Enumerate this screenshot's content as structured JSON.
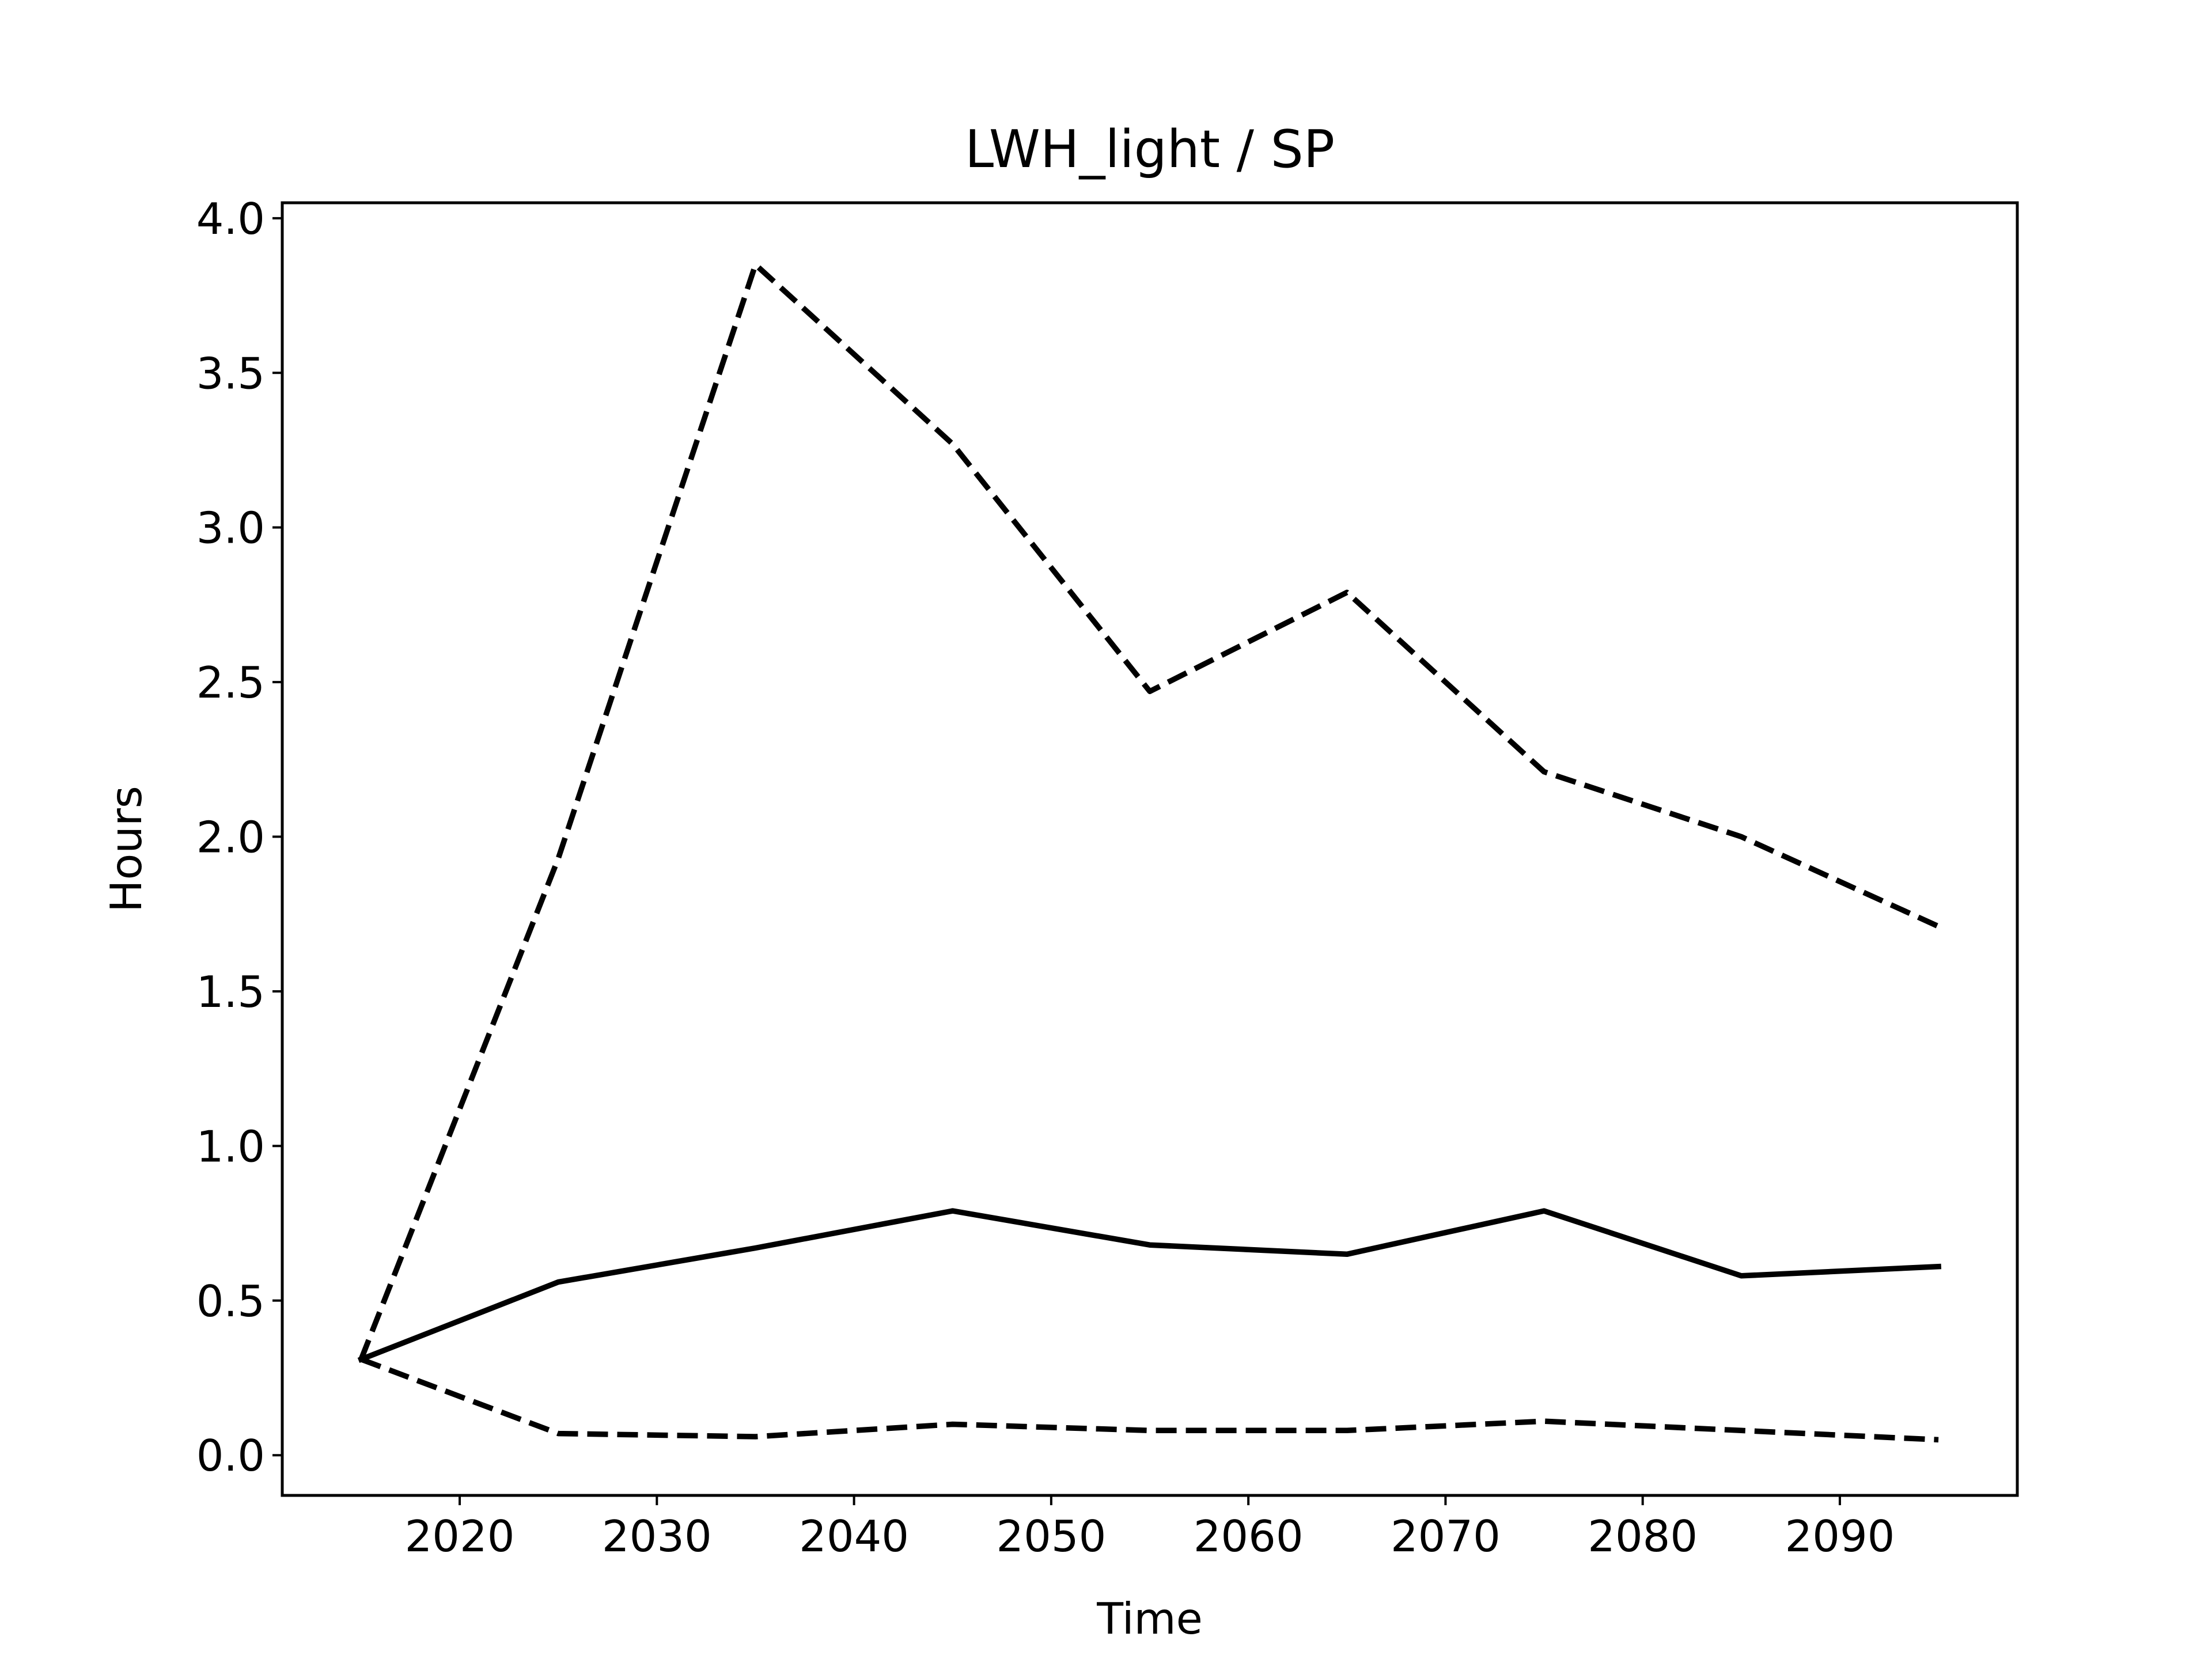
{
  "chart_data": {
    "type": "line",
    "title": "LWH_light / SP",
    "xlabel": "Time",
    "ylabel": "Hours",
    "xlim": [
      2011,
      2099
    ],
    "ylim": [
      -0.13,
      4.05
    ],
    "x_ticks": [
      2020,
      2030,
      2040,
      2050,
      2060,
      2070,
      2080,
      2090
    ],
    "y_ticks": [
      0.0,
      0.5,
      1.0,
      1.5,
      2.0,
      2.5,
      3.0,
      3.5,
      4.0
    ],
    "y_tick_labels": [
      "0.0",
      "0.5",
      "1.0",
      "1.5",
      "2.0",
      "2.5",
      "3.0",
      "3.5",
      "4.0"
    ],
    "grid": false,
    "x": [
      2015,
      2025,
      2035,
      2045,
      2055,
      2065,
      2075,
      2085,
      2095
    ],
    "series": [
      {
        "style": "dashed",
        "color": "#000000",
        "values": [
          0.31,
          1.93,
          3.85,
          3.27,
          2.47,
          2.79,
          2.21,
          2.0,
          1.71
        ]
      },
      {
        "style": "solid",
        "color": "#000000",
        "values": [
          0.31,
          0.56,
          0.67,
          0.79,
          0.68,
          0.65,
          0.79,
          0.58,
          0.61
        ]
      },
      {
        "style": "dashed",
        "color": "#000000",
        "values": [
          0.31,
          0.07,
          0.06,
          0.1,
          0.08,
          0.08,
          0.11,
          0.08,
          0.05
        ]
      }
    ]
  }
}
